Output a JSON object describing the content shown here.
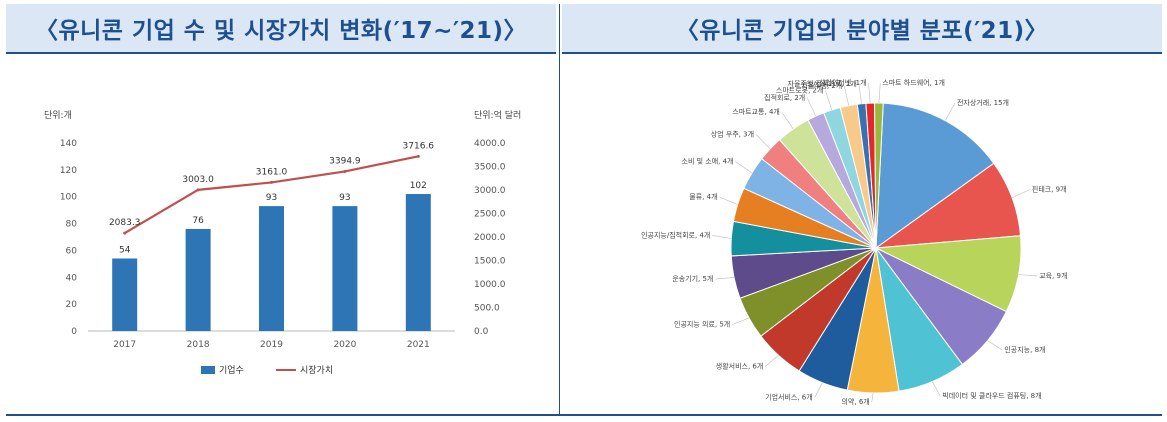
{
  "header": {
    "left_title": "〈유니콘 기업 수 및 시장가치 변화(′17~′21)〉",
    "right_title": "〈유니콘 기업의 분야별 분포(′21)〉"
  },
  "chart_data": [
    {
      "type": "bar",
      "categories": [
        "2017",
        "2018",
        "2019",
        "2020",
        "2021"
      ],
      "series": [
        {
          "name": "기업수",
          "type": "bar",
          "axis": "left",
          "values": [
            54,
            76,
            93,
            93,
            102
          ],
          "color": "#2e75b6"
        },
        {
          "name": "시장가치",
          "type": "line",
          "axis": "right",
          "values": [
            2083.3,
            3003.0,
            3161.0,
            3394.9,
            3716.6
          ],
          "color": "#c0504d"
        }
      ],
      "y_left": {
        "unit": "단위:개",
        "ylim": [
          0,
          140
        ],
        "ticks": [
          "0",
          "20",
          "40",
          "60",
          "80",
          "100",
          "120",
          "140"
        ]
      },
      "y_right": {
        "unit": "단위:억 달러",
        "ylim": [
          0,
          4000
        ],
        "ticks": [
          "0.0",
          "500.0",
          "1000.0",
          "1500.0",
          "2000.0",
          "2500.0",
          "3000.0",
          "3500.0",
          "4000.0"
        ]
      },
      "bar_labels": [
        "54",
        "76",
        "93",
        "93",
        "102"
      ],
      "line_labels": [
        "2083.3",
        "3003.0",
        "3161.0",
        "3394.9",
        "3716.6"
      ],
      "legend": {
        "placement": "bottom",
        "labels": [
          "기업수",
          "시장가치"
        ]
      },
      "grid": false
    },
    {
      "type": "pie",
      "slices": [
        {
          "label": "전자상거래, 15개",
          "value": 15,
          "color": "#5b9bd5"
        },
        {
          "label": "핀테크, 9개",
          "value": 9,
          "color": "#e8554e"
        },
        {
          "label": "교육, 9개",
          "value": 9,
          "color": "#b8d45a"
        },
        {
          "label": "인공지능, 8개",
          "value": 8,
          "color": "#8a7cc7"
        },
        {
          "label": "빅데이터 및 클라우드 컴퓨팅, 8개",
          "value": 8,
          "color": "#4fc3d4"
        },
        {
          "label": "의약, 6개",
          "value": 6,
          "color": "#f5b43c"
        },
        {
          "label": "기업서비스, 6개",
          "value": 6,
          "color": "#1f5c9e"
        },
        {
          "label": "생활서비스, 6개",
          "value": 6,
          "color": "#c0392b"
        },
        {
          "label": "인공지능 의료, 5개",
          "value": 5,
          "color": "#7f8f2a"
        },
        {
          "label": "운송기기, 5개",
          "value": 5,
          "color": "#5e4b8b"
        },
        {
          "label": "인공지능/집적회로, 4개",
          "value": 4,
          "color": "#148f9e"
        },
        {
          "label": "물류, 4개",
          "value": 4,
          "color": "#e67e22"
        },
        {
          "label": "소비 및 소매, 4개",
          "value": 4,
          "color": "#7fb2e5"
        },
        {
          "label": "상업 우주, 3개",
          "value": 3,
          "color": "#f08080"
        },
        {
          "label": "스마트교통, 4개",
          "value": 4,
          "color": "#cfe29a"
        },
        {
          "label": "집적회로, 2개",
          "value": 2,
          "color": "#b6a9de"
        },
        {
          "label": "스마트로봇, 2개",
          "value": 2,
          "color": "#8fd6e0"
        },
        {
          "label": "자율주행, 2개",
          "value": 2,
          "color": "#f7c98b"
        },
        {
          "label": "자율주행/집적회로, 1개",
          "value": 1,
          "color": "#3a6fb0"
        },
        {
          "label": "산업인터넷, 1개",
          "value": 1,
          "color": "#e02a2a"
        },
        {
          "label": "스마트 하드웨어, 1개",
          "value": 1,
          "color": "#9ab83d"
        }
      ]
    }
  ]
}
